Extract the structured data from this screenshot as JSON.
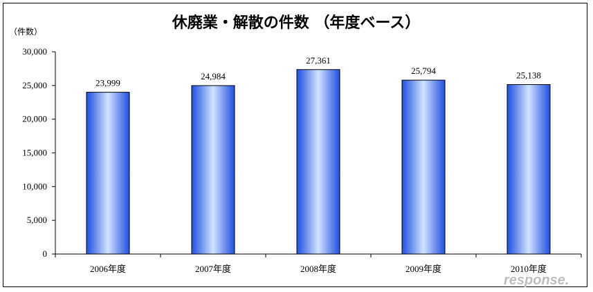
{
  "watermark": "response.",
  "chart_data": {
    "type": "bar",
    "title": "休廃業・解散の件数 （年度ベース）",
    "ylabel": "（件数）",
    "xlabel": "",
    "categories": [
      "2006年度",
      "2007年度",
      "2008年度",
      "2009年度",
      "2010年度"
    ],
    "values": [
      23999,
      24984,
      27361,
      25794,
      25138
    ],
    "value_labels": [
      "23,999",
      "24,984",
      "27,361",
      "25,794",
      "25,138"
    ],
    "ylim": [
      0,
      30000
    ],
    "yticks": [
      0,
      5000,
      10000,
      15000,
      20000,
      25000,
      30000
    ],
    "ytick_labels": [
      "0",
      "5,000",
      "10,000",
      "15,000",
      "20,000",
      "25,000",
      "30,000"
    ],
    "grid": false,
    "legend": "none",
    "bar_color_light": "#cfe3ff",
    "bar_color_dark": "#1f4fe0"
  }
}
